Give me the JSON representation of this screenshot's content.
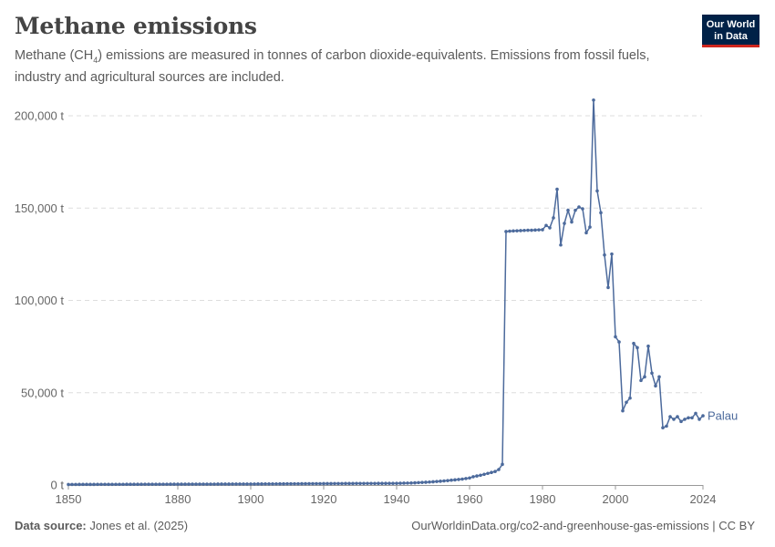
{
  "header": {
    "title": "Methane emissions",
    "subtitle_pre": "Methane (CH",
    "subtitle_sub": "4",
    "subtitle_post": ") emissions are measured in tonnes of carbon dioxide-equivalents. Emissions from fossil fuels, industry and agricultural sources are included.",
    "logo_line1": "Our World",
    "logo_line2": "in Data"
  },
  "footer": {
    "source_label": "Data source:",
    "source": "Jones et al. (2025)",
    "url": "OurWorldinData.org/co2-and-greenhouse-gas-emissions | CC BY"
  },
  "colors": {
    "series": "#4c6a9c",
    "logo_bg": "#002147",
    "logo_accent": "#ce261e"
  },
  "chart_data": {
    "type": "line",
    "title": "Methane emissions",
    "xlim": [
      1850,
      2024
    ],
    "ylim": [
      0,
      200000
    ],
    "yticks": [
      {
        "v": 0,
        "label": "0 t"
      },
      {
        "v": 50000,
        "label": "50,000 t"
      },
      {
        "v": 100000,
        "label": "100,000 t"
      },
      {
        "v": 150000,
        "label": "150,000 t"
      },
      {
        "v": 200000,
        "label": "200,000 t"
      }
    ],
    "xticks": [
      1850,
      1880,
      1900,
      1920,
      1940,
      1960,
      1980,
      2000,
      2024
    ],
    "grid": "horizontal dashed",
    "series": [
      {
        "name": "Palau",
        "start_year": 1850,
        "values": [
          300,
          305,
          310,
          315,
          320,
          325,
          330,
          335,
          340,
          345,
          350,
          355,
          360,
          365,
          370,
          375,
          380,
          385,
          390,
          395,
          400,
          405,
          410,
          415,
          420,
          425,
          430,
          435,
          440,
          445,
          450,
          455,
          460,
          465,
          470,
          475,
          480,
          485,
          490,
          495,
          500,
          505,
          510,
          515,
          520,
          525,
          530,
          535,
          540,
          545,
          550,
          560,
          570,
          580,
          590,
          600,
          610,
          620,
          630,
          640,
          650,
          660,
          670,
          680,
          690,
          700,
          710,
          720,
          730,
          740,
          750,
          760,
          770,
          780,
          790,
          800,
          810,
          820,
          830,
          840,
          850,
          855,
          860,
          865,
          870,
          875,
          880,
          885,
          890,
          895,
          900,
          950,
          1000,
          1050,
          1100,
          1200,
          1300,
          1400,
          1500,
          1600,
          1750,
          1900,
          2050,
          2200,
          2400,
          2600,
          2800,
          3000,
          3200,
          3500,
          3800,
          4500,
          4900,
          5300,
          5800,
          6300,
          6800,
          7300,
          8400,
          11200,
          137300,
          137500,
          137600,
          137700,
          137800,
          137900,
          138000,
          138000,
          138100,
          138200,
          138300,
          140600,
          139300,
          144700,
          160200,
          130000,
          141700,
          148800,
          142500,
          148800,
          150600,
          149600,
          136600,
          139700,
          208500,
          159300,
          147500,
          124600,
          107000,
          125100,
          80300,
          77500,
          40200,
          44800,
          47100,
          76700,
          74400,
          56600,
          58600,
          75200,
          60600,
          53700,
          58600,
          31000,
          31900,
          37000,
          35600,
          37000,
          34400,
          35600,
          36400,
          36400,
          38800,
          35600,
          37500
        ]
      }
    ]
  }
}
